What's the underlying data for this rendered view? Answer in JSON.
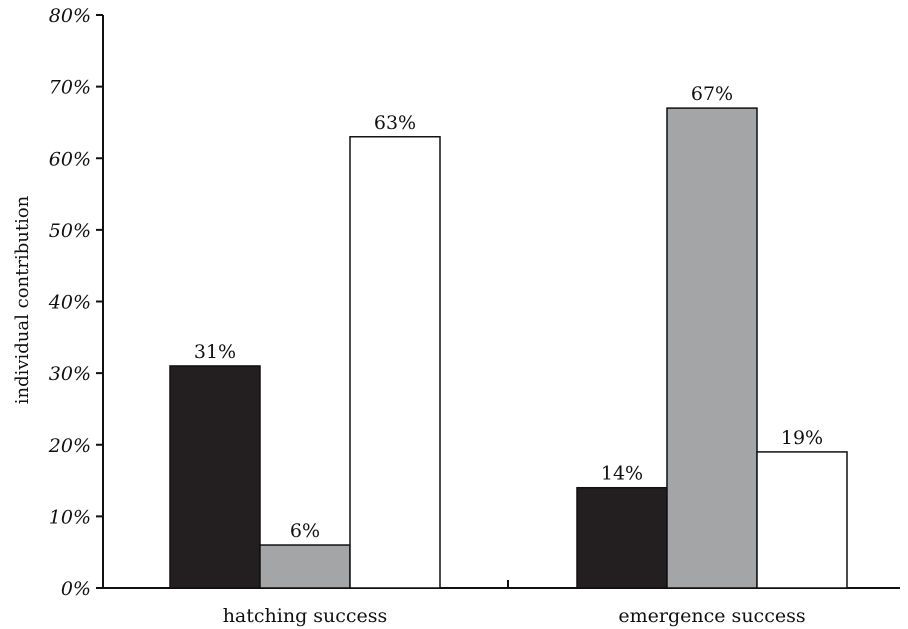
{
  "chart_data": {
    "type": "bar",
    "title": "",
    "xlabel": "",
    "ylabel": "individual contribution",
    "ylim": [
      0,
      80
    ],
    "yticks": [
      0,
      10,
      20,
      30,
      40,
      50,
      60,
      70,
      80
    ],
    "ytick_labels": [
      "0%",
      "10%",
      "20%",
      "30%",
      "40%",
      "50%",
      "60%",
      "70%",
      "80%"
    ],
    "categories": [
      "hatching success",
      "emergence success"
    ],
    "series": [
      {
        "values": [
          31,
          14
        ],
        "labels": [
          "31%",
          "14%"
        ],
        "color": "#231f20"
      },
      {
        "values": [
          6,
          67
        ],
        "labels": [
          "6%",
          "67%"
        ],
        "color": "#a4a5a7"
      },
      {
        "values": [
          63,
          19
        ],
        "labels": [
          "63%",
          "19%"
        ],
        "color": "#ffffff"
      }
    ],
    "grid": false,
    "legend": "none"
  }
}
